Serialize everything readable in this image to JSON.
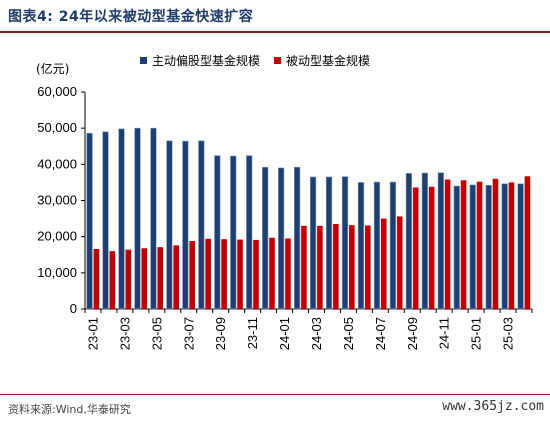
{
  "figure": {
    "title": "图表4:  24年以来被动型基金快速扩容",
    "unit_label": "(亿元)",
    "source": "资料来源:Wind,华泰研究",
    "watermark": "www.365jz.com"
  },
  "colors": {
    "active": "#1f3f73",
    "passive": "#c00000",
    "rule": "#8a1a1a",
    "title": "#1f3b67"
  },
  "chart_data": {
    "type": "bar",
    "categories": [
      "23-01",
      "23-02",
      "23-03",
      "23-04",
      "23-05",
      "23-06",
      "23-07",
      "23-08",
      "23-09",
      "23-10",
      "23-11",
      "23-12",
      "24-01",
      "24-02",
      "24-03",
      "24-04",
      "24-05",
      "24-06",
      "24-07",
      "24-08",
      "24-09",
      "24-10",
      "24-11",
      "24-12",
      "25-01",
      "25-02",
      "25-03",
      "25-04"
    ],
    "tick_labels": [
      "23-01",
      "",
      "23-03",
      "",
      "23-05",
      "",
      "23-07",
      "",
      "23-09",
      "",
      "23-11",
      "",
      "24-01",
      "",
      "24-03",
      "",
      "24-05",
      "",
      "24-07",
      "",
      "24-09",
      "",
      "24-11",
      "",
      "25-01",
      "",
      "25-03",
      ""
    ],
    "series": [
      {
        "name": "主动偏股型基金规模",
        "values": [
          48600,
          49000,
          49800,
          50000,
          50000,
          46500,
          46400,
          46500,
          42400,
          42300,
          42400,
          39200,
          39000,
          39200,
          36500,
          36500,
          36600,
          35000,
          35100,
          35100,
          37500,
          37600,
          37700,
          34000,
          34300,
          34200,
          34600,
          34600
        ]
      },
      {
        "name": "被动型基金规模",
        "values": [
          16600,
          16000,
          16400,
          16800,
          17100,
          17600,
          18800,
          19400,
          19300,
          19200,
          19100,
          19700,
          19500,
          23000,
          23000,
          23500,
          23200,
          23100,
          25000,
          25600,
          33600,
          33800,
          35800,
          35600,
          35200,
          36000,
          35000,
          36700
        ]
      }
    ],
    "ylim": [
      0,
      60000
    ],
    "yticks": [
      0,
      10000,
      20000,
      30000,
      40000,
      50000,
      60000
    ],
    "ytick_labels": [
      "0",
      "10,000",
      "20,000",
      "30,000",
      "40,000",
      "50,000",
      "60,000"
    ],
    "legend_position": "top-center",
    "grid": false
  }
}
